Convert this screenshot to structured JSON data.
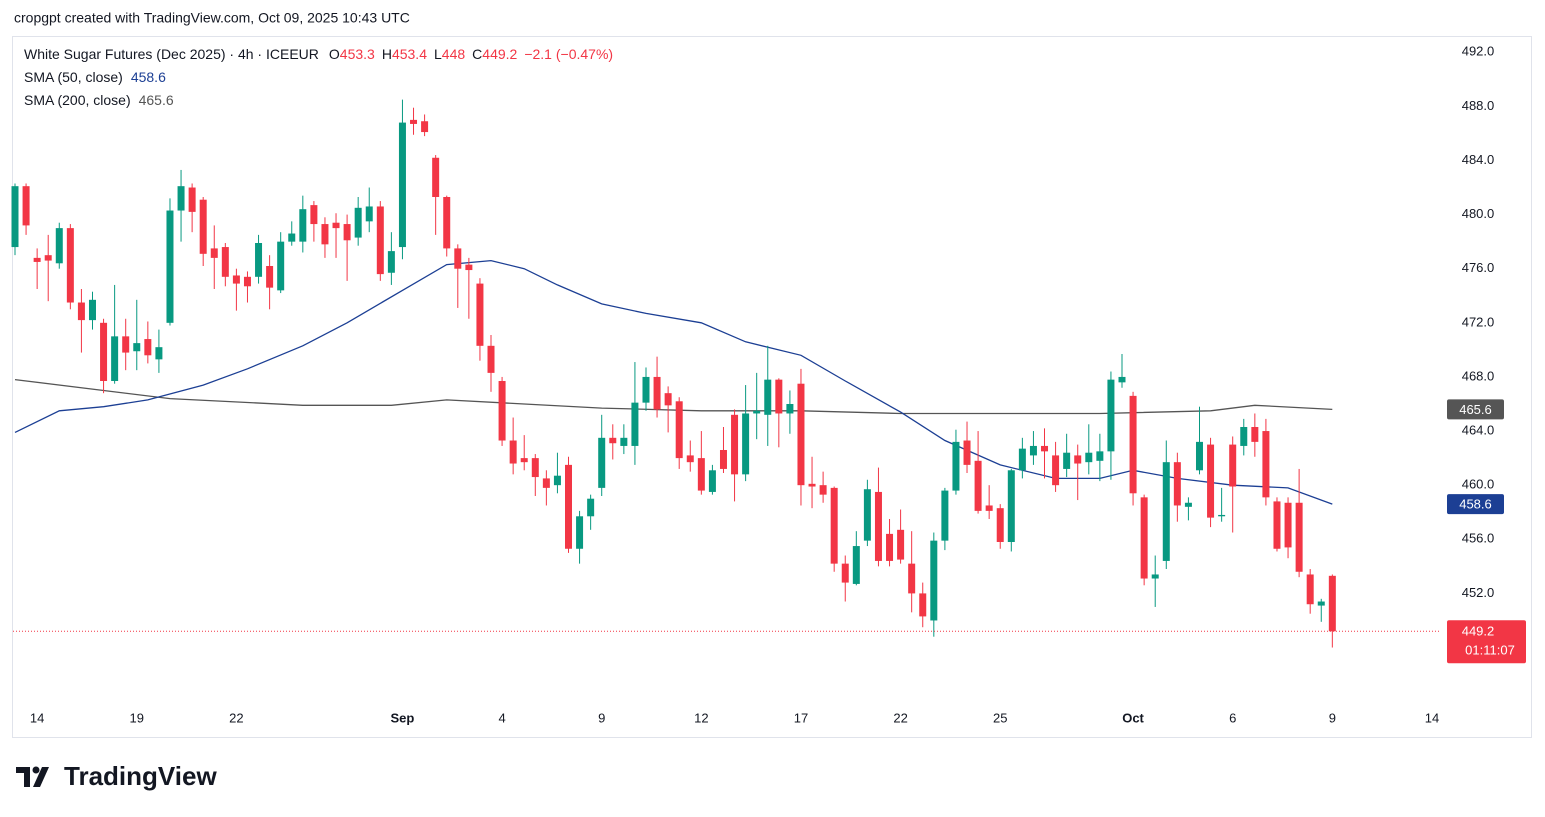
{
  "header": {
    "text": "cropgpt created with TradingView.com, Oct 09, 2025 10:43 UTC"
  },
  "footer": {
    "logo": "TradingView"
  },
  "chart_data": {
    "type": "candlestick",
    "title": "White Sugar Futures (Dec 2025) · 4h · ICEEUR",
    "legend_keys": [
      "O",
      "H",
      "L",
      "C"
    ],
    "change_label": "−2.1 (−0.47%)",
    "countdown": "01:11:07",
    "up_color": "#089981",
    "down_color": "#f23645",
    "ylim": [
      443.7,
      493.2
    ],
    "yticks": [
      {
        "value": 452,
        "label": "452.0"
      },
      {
        "value": 456,
        "label": "456.0"
      },
      {
        "value": 460,
        "label": "460.0"
      },
      {
        "value": 464,
        "label": "464.0"
      },
      {
        "value": 468,
        "label": "468.0"
      },
      {
        "value": 472,
        "label": "472.0"
      },
      {
        "value": 476,
        "label": "476.0"
      },
      {
        "value": 480,
        "label": "480.0"
      },
      {
        "value": 484,
        "label": "484.0"
      },
      {
        "value": 488,
        "label": "488.0"
      },
      {
        "value": 492,
        "label": "492.0"
      }
    ],
    "categories": [
      null,
      null,
      "14",
      null,
      null,
      null,
      null,
      null,
      null,
      null,
      null,
      "19",
      null,
      null,
      null,
      null,
      null,
      null,
      null,
      null,
      "22",
      null,
      null,
      null,
      null,
      null,
      null,
      null,
      null,
      null,
      null,
      null,
      null,
      null,
      null,
      "Sep",
      null,
      null,
      null,
      null,
      null,
      null,
      null,
      null,
      "4",
      null,
      null,
      null,
      null,
      null,
      null,
      null,
      null,
      "9",
      null,
      null,
      null,
      null,
      null,
      null,
      null,
      null,
      "12",
      null,
      null,
      null,
      null,
      null,
      null,
      null,
      null,
      "17",
      null,
      null,
      null,
      null,
      null,
      null,
      null,
      null,
      "22",
      null,
      null,
      null,
      null,
      null,
      null,
      null,
      null,
      "25",
      null,
      null,
      null,
      null,
      null,
      null,
      null,
      null,
      null,
      null,
      null,
      "Oct",
      null,
      null,
      null,
      null,
      null,
      null,
      null,
      null,
      "6",
      null,
      null,
      null,
      null,
      null,
      null,
      null,
      null,
      "9",
      null,
      null,
      null,
      null,
      null,
      null,
      null,
      null,
      "14"
    ],
    "candles": [
      {
        "open": 477.6,
        "high": 482.3,
        "low": 477.0,
        "close": 482.1
      },
      {
        "open": 482.1,
        "high": 482.3,
        "low": 478.5,
        "close": 479.2
      },
      {
        "open": 476.8,
        "high": 477.5,
        "low": 474.5,
        "close": 476.5
      },
      {
        "open": 477.0,
        "high": 478.5,
        "low": 473.6,
        "close": 476.6
      },
      {
        "open": 476.4,
        "high": 479.4,
        "low": 476.0,
        "close": 479.0
      },
      {
        "open": 479.0,
        "high": 479.3,
        "low": 473.0,
        "close": 473.5
      },
      {
        "open": 473.5,
        "high": 474.5,
        "low": 469.8,
        "close": 472.2
      },
      {
        "open": 472.2,
        "high": 474.3,
        "low": 471.5,
        "close": 473.7
      },
      {
        "open": 472.0,
        "high": 472.3,
        "low": 466.8,
        "close": 467.7
      },
      {
        "open": 467.7,
        "high": 474.8,
        "low": 467.5,
        "close": 471.0
      },
      {
        "open": 471.0,
        "high": 472.3,
        "low": 468.5,
        "close": 469.8
      },
      {
        "open": 469.9,
        "high": 473.7,
        "low": 468.5,
        "close": 470.5
      },
      {
        "open": 470.8,
        "high": 472.1,
        "low": 469.0,
        "close": 469.6
      },
      {
        "open": 469.3,
        "high": 471.5,
        "low": 468.3,
        "close": 470.2
      },
      {
        "open": 472.0,
        "high": 481.2,
        "low": 471.8,
        "close": 480.3
      },
      {
        "open": 480.3,
        "high": 483.3,
        "low": 478.0,
        "close": 482.1
      },
      {
        "open": 482.0,
        "high": 482.3,
        "low": 478.7,
        "close": 480.2
      },
      {
        "open": 481.1,
        "high": 481.3,
        "low": 476.2,
        "close": 477.1
      },
      {
        "open": 477.5,
        "high": 479.2,
        "low": 474.5,
        "close": 476.8
      },
      {
        "open": 477.6,
        "high": 477.9,
        "low": 474.7,
        "close": 475.4
      },
      {
        "open": 475.5,
        "high": 476.0,
        "low": 472.9,
        "close": 474.9
      },
      {
        "open": 475.4,
        "high": 475.8,
        "low": 473.5,
        "close": 474.7
      },
      {
        "open": 475.4,
        "high": 478.5,
        "low": 474.9,
        "close": 477.9
      },
      {
        "open": 476.2,
        "high": 477.0,
        "low": 473.0,
        "close": 474.6
      },
      {
        "open": 474.4,
        "high": 478.7,
        "low": 474.2,
        "close": 478.0
      },
      {
        "open": 478.0,
        "high": 479.5,
        "low": 477.7,
        "close": 478.6
      },
      {
        "open": 478.0,
        "high": 481.4,
        "low": 477.2,
        "close": 480.4
      },
      {
        "open": 480.7,
        "high": 481.0,
        "low": 478.0,
        "close": 479.3
      },
      {
        "open": 479.3,
        "high": 479.8,
        "low": 476.8,
        "close": 477.8
      },
      {
        "open": 479.4,
        "high": 480.1,
        "low": 476.8,
        "close": 479.0
      },
      {
        "open": 479.3,
        "high": 480.0,
        "low": 475.1,
        "close": 478.1
      },
      {
        "open": 478.3,
        "high": 481.3,
        "low": 477.7,
        "close": 480.5
      },
      {
        "open": 479.5,
        "high": 482.0,
        "low": 478.7,
        "close": 480.6
      },
      {
        "open": 480.6,
        "high": 481.0,
        "low": 475.1,
        "close": 475.6
      },
      {
        "open": 475.7,
        "high": 478.7,
        "low": 474.8,
        "close": 477.3
      },
      {
        "open": 477.6,
        "high": 488.5,
        "low": 476.7,
        "close": 486.8
      },
      {
        "open": 487.0,
        "high": 487.9,
        "low": 485.9,
        "close": 486.7
      },
      {
        "open": 486.9,
        "high": 487.4,
        "low": 485.8,
        "close": 486.1
      },
      {
        "open": 484.2,
        "high": 484.4,
        "low": 478.5,
        "close": 481.3
      },
      {
        "open": 481.3,
        "high": 481.4,
        "low": 476.9,
        "close": 477.5
      },
      {
        "open": 477.5,
        "high": 477.8,
        "low": 473.1,
        "close": 476.0
      },
      {
        "open": 476.3,
        "high": 476.8,
        "low": 472.3,
        "close": 475.9
      },
      {
        "open": 474.9,
        "high": 475.3,
        "low": 469.2,
        "close": 470.3
      },
      {
        "open": 470.3,
        "high": 471.1,
        "low": 466.9,
        "close": 468.3
      },
      {
        "open": 467.7,
        "high": 468.0,
        "low": 462.9,
        "close": 463.3
      },
      {
        "open": 463.3,
        "high": 465.0,
        "low": 460.8,
        "close": 461.6
      },
      {
        "open": 462.0,
        "high": 463.7,
        "low": 461.1,
        "close": 461.7
      },
      {
        "open": 462.0,
        "high": 462.3,
        "low": 459.2,
        "close": 460.6
      },
      {
        "open": 460.5,
        "high": 461.1,
        "low": 458.5,
        "close": 459.8
      },
      {
        "open": 460.0,
        "high": 462.4,
        "low": 459.4,
        "close": 460.7
      },
      {
        "open": 461.5,
        "high": 462.1,
        "low": 455.0,
        "close": 455.3
      },
      {
        "open": 455.3,
        "high": 458.1,
        "low": 454.2,
        "close": 457.7
      },
      {
        "open": 457.7,
        "high": 459.3,
        "low": 456.7,
        "close": 459.0
      },
      {
        "open": 459.8,
        "high": 465.2,
        "low": 459.2,
        "close": 463.5
      },
      {
        "open": 463.5,
        "high": 464.5,
        "low": 461.9,
        "close": 463.1
      },
      {
        "open": 462.9,
        "high": 464.5,
        "low": 462.3,
        "close": 463.5
      },
      {
        "open": 462.9,
        "high": 469.1,
        "low": 461.5,
        "close": 466.1
      },
      {
        "open": 466.1,
        "high": 468.7,
        "low": 465.5,
        "close": 468.0
      },
      {
        "open": 468.0,
        "high": 469.5,
        "low": 465.0,
        "close": 465.6
      },
      {
        "open": 466.8,
        "high": 467.3,
        "low": 463.9,
        "close": 465.9
      },
      {
        "open": 466.2,
        "high": 466.5,
        "low": 461.2,
        "close": 462.0
      },
      {
        "open": 462.2,
        "high": 463.3,
        "low": 461.0,
        "close": 461.7
      },
      {
        "open": 462.0,
        "high": 464.0,
        "low": 459.3,
        "close": 459.6
      },
      {
        "open": 459.5,
        "high": 461.5,
        "low": 459.3,
        "close": 461.1
      },
      {
        "open": 462.6,
        "high": 464.3,
        "low": 460.9,
        "close": 461.2
      },
      {
        "open": 465.2,
        "high": 465.6,
        "low": 458.8,
        "close": 460.8
      },
      {
        "open": 460.8,
        "high": 467.4,
        "low": 460.3,
        "close": 465.3
      },
      {
        "open": 465.3,
        "high": 468.3,
        "low": 463.4,
        "close": 465.5
      },
      {
        "open": 465.2,
        "high": 470.3,
        "low": 462.9,
        "close": 467.8
      },
      {
        "open": 467.8,
        "high": 467.9,
        "low": 462.8,
        "close": 465.3
      },
      {
        "open": 465.3,
        "high": 467.0,
        "low": 463.8,
        "close": 466.0
      },
      {
        "open": 467.5,
        "high": 468.6,
        "low": 458.5,
        "close": 460.0
      },
      {
        "open": 460.1,
        "high": 462.1,
        "low": 458.3,
        "close": 459.9
      },
      {
        "open": 460.0,
        "high": 461.0,
        "low": 458.7,
        "close": 459.3
      },
      {
        "open": 459.8,
        "high": 459.9,
        "low": 453.6,
        "close": 454.2
      },
      {
        "open": 454.2,
        "high": 454.8,
        "low": 451.4,
        "close": 452.8
      },
      {
        "open": 452.7,
        "high": 456.6,
        "low": 452.6,
        "close": 455.5
      },
      {
        "open": 455.9,
        "high": 460.4,
        "low": 455.5,
        "close": 459.7
      },
      {
        "open": 459.5,
        "high": 461.3,
        "low": 454.0,
        "close": 454.4
      },
      {
        "open": 456.4,
        "high": 457.5,
        "low": 454.0,
        "close": 454.4
      },
      {
        "open": 456.7,
        "high": 458.2,
        "low": 454.2,
        "close": 454.5
      },
      {
        "open": 454.2,
        "high": 456.6,
        "low": 450.6,
        "close": 452.0
      },
      {
        "open": 452.0,
        "high": 452.8,
        "low": 449.5,
        "close": 450.3
      },
      {
        "open": 450.0,
        "high": 456.5,
        "low": 448.8,
        "close": 455.9
      },
      {
        "open": 455.9,
        "high": 459.8,
        "low": 455.2,
        "close": 459.6
      },
      {
        "open": 459.6,
        "high": 464.1,
        "low": 459.3,
        "close": 463.2
      },
      {
        "open": 463.3,
        "high": 464.7,
        "low": 460.9,
        "close": 461.5
      },
      {
        "open": 461.8,
        "high": 464.0,
        "low": 457.9,
        "close": 458.1
      },
      {
        "open": 458.5,
        "high": 460.0,
        "low": 457.5,
        "close": 458.1
      },
      {
        "open": 458.3,
        "high": 458.6,
        "low": 455.3,
        "close": 455.8
      },
      {
        "open": 455.8,
        "high": 461.2,
        "low": 455.1,
        "close": 461.1
      },
      {
        "open": 461.1,
        "high": 463.5,
        "low": 460.5,
        "close": 462.7
      },
      {
        "open": 462.2,
        "high": 464.0,
        "low": 461.5,
        "close": 462.9
      },
      {
        "open": 462.9,
        "high": 464.2,
        "low": 460.5,
        "close": 462.5
      },
      {
        "open": 462.2,
        "high": 463.2,
        "low": 459.5,
        "close": 460.0
      },
      {
        "open": 461.2,
        "high": 463.8,
        "low": 460.6,
        "close": 462.4
      },
      {
        "open": 462.2,
        "high": 463.0,
        "low": 458.9,
        "close": 461.6
      },
      {
        "open": 461.7,
        "high": 464.5,
        "low": 460.8,
        "close": 462.4
      },
      {
        "open": 461.8,
        "high": 463.8,
        "low": 460.3,
        "close": 462.5
      },
      {
        "open": 462.5,
        "high": 468.4,
        "low": 460.4,
        "close": 467.8
      },
      {
        "open": 467.6,
        "high": 469.7,
        "low": 467.2,
        "close": 468.0
      },
      {
        "open": 466.6,
        "high": 466.9,
        "low": 458.5,
        "close": 459.4
      },
      {
        "open": 459.1,
        "high": 459.3,
        "low": 452.6,
        "close": 453.1
      },
      {
        "open": 453.1,
        "high": 454.8,
        "low": 451.0,
        "close": 453.4
      },
      {
        "open": 454.4,
        "high": 463.3,
        "low": 453.8,
        "close": 461.7
      },
      {
        "open": 461.7,
        "high": 462.4,
        "low": 457.3,
        "close": 458.5
      },
      {
        "open": 458.4,
        "high": 459.1,
        "low": 457.4,
        "close": 458.7
      },
      {
        "open": 461.1,
        "high": 465.8,
        "low": 460.8,
        "close": 463.2
      },
      {
        "open": 463.0,
        "high": 463.5,
        "low": 456.9,
        "close": 457.6
      },
      {
        "open": 457.7,
        "high": 459.8,
        "low": 457.3,
        "close": 457.8
      },
      {
        "open": 463.0,
        "high": 463.6,
        "low": 456.5,
        "close": 459.9
      },
      {
        "open": 462.9,
        "high": 464.9,
        "low": 462.2,
        "close": 464.3
      },
      {
        "open": 464.3,
        "high": 465.3,
        "low": 462.1,
        "close": 463.2
      },
      {
        "open": 464.0,
        "high": 464.9,
        "low": 458.5,
        "close": 459.1
      },
      {
        "open": 458.8,
        "high": 459.1,
        "low": 455.1,
        "close": 455.3
      },
      {
        "open": 458.7,
        "high": 459.1,
        "low": 454.6,
        "close": 455.4
      },
      {
        "open": 458.7,
        "high": 461.2,
        "low": 453.2,
        "close": 453.6
      },
      {
        "open": 453.4,
        "high": 453.8,
        "low": 450.5,
        "close": 451.2
      },
      {
        "open": 451.1,
        "high": 451.6,
        "low": 449.9,
        "close": 451.4
      },
      {
        "open": 453.3,
        "high": 453.4,
        "low": 448.0,
        "close": 449.2
      },
      null,
      null,
      null,
      null,
      null,
      null,
      null,
      null,
      null
    ],
    "series": [
      {
        "name": "SMA (50, close)",
        "color": "#1c3f94",
        "x": [
          0,
          4,
          8,
          12,
          17,
          21,
          26,
          30,
          35,
          39,
          43,
          46,
          49,
          53,
          57,
          62,
          66,
          71,
          75,
          80,
          84,
          89,
          94,
          98,
          101,
          105,
          110,
          115,
          119
        ],
        "values": [
          463.9,
          465.5,
          465.8,
          466.3,
          467.4,
          468.6,
          470.3,
          472.0,
          474.4,
          476.3,
          476.6,
          476.0,
          474.8,
          473.4,
          472.7,
          472.0,
          470.6,
          469.6,
          467.7,
          465.4,
          463.3,
          461.5,
          460.5,
          460.5,
          461.1,
          460.5,
          460.0,
          459.8,
          458.6
        ]
      },
      {
        "name": "SMA (200, close)",
        "color": "#555555",
        "x": [
          0,
          8,
          14,
          26,
          34,
          39,
          46,
          53,
          62,
          71,
          80,
          89,
          98,
          108,
          112,
          119
        ],
        "values": [
          467.8,
          467.0,
          466.4,
          465.9,
          465.9,
          466.3,
          466.0,
          465.7,
          465.5,
          465.5,
          465.3,
          465.3,
          465.3,
          465.5,
          465.9,
          465.6
        ]
      }
    ]
  }
}
